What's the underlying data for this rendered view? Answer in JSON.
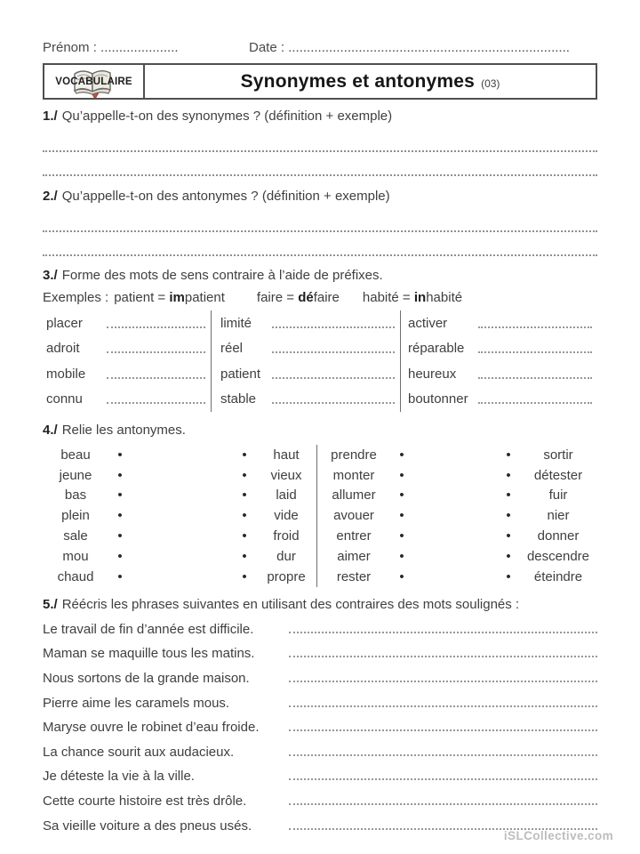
{
  "header_fields": {
    "prenom": "Prénom : ……………………",
    "prenom_text": "Prénom : .....................",
    "date_text": "Date : ............................................................................"
  },
  "header": {
    "category": "VOCABULAIRE",
    "title": "Synonymes et antonymes",
    "title_number": "(03)",
    "icon": "open-book-icon"
  },
  "q1": {
    "number": "1./",
    "text": "Qu’appelle-t-on des synonymes ? (définition + exemple)"
  },
  "q2": {
    "number": "2./",
    "text": "Qu’appelle-t-on des antonymes ? (définition + exemple)"
  },
  "q3": {
    "number": "3./",
    "text": "Forme des mots de sens contraire à l’aide de préfixes.",
    "examples_label": "Exemples :",
    "examples": [
      {
        "base": "patient = ",
        "prefix": "im",
        "rest": "patient"
      },
      {
        "base": "faire = ",
        "prefix": "dé",
        "rest": "faire"
      },
      {
        "base": "habité = ",
        "prefix": "in",
        "rest": "habité"
      }
    ],
    "columns": [
      [
        "placer",
        "adroit",
        "mobile",
        "connu"
      ],
      [
        "limité",
        "réel",
        "patient",
        "stable"
      ],
      [
        "activer",
        "réparable",
        "heureux",
        "boutonner"
      ]
    ]
  },
  "q4": {
    "number": "4./",
    "text": "Relie les antonymes.",
    "bullet": "•",
    "left_group": {
      "left": [
        "beau",
        "jeune",
        "bas",
        "plein",
        "sale",
        "mou",
        "chaud"
      ],
      "right": [
        "haut",
        "vieux",
        "laid",
        "vide",
        "froid",
        "dur",
        "propre"
      ]
    },
    "right_group": {
      "left": [
        "prendre",
        "monter",
        "allumer",
        "avouer",
        "entrer",
        "aimer",
        "rester"
      ],
      "right": [
        "sortir",
        "détester",
        "fuir",
        "nier",
        "donner",
        "descendre",
        "éteindre"
      ]
    }
  },
  "q5": {
    "number": "5./",
    "text": "Réécris les phrases suivantes en utilisant des contraires des mots soulignés :",
    "sentences": [
      [
        [
          "Le travail de ",
          0
        ],
        [
          "fin",
          1
        ],
        [
          " d’année est ",
          0
        ],
        [
          "difficile",
          1
        ],
        [
          ".",
          0
        ]
      ],
      [
        [
          "Maman se ",
          0
        ],
        [
          "maquille",
          1
        ],
        [
          " tous les ",
          0
        ],
        [
          "matins",
          1
        ],
        [
          ".",
          0
        ]
      ],
      [
        [
          "Nous ",
          0
        ],
        [
          "sortons",
          1
        ],
        [
          " de la ",
          0
        ],
        [
          "grande",
          1
        ],
        [
          " maison.",
          0
        ]
      ],
      [
        [
          "Pierre ",
          0
        ],
        [
          "aime",
          1
        ],
        [
          " les caramels ",
          0
        ],
        [
          "mous",
          1
        ],
        [
          ".",
          0
        ]
      ],
      [
        [
          "Maryse ",
          0
        ],
        [
          "ouvre",
          1
        ],
        [
          " le robinet d’eau ",
          0
        ],
        [
          "froide",
          1
        ],
        [
          ".",
          0
        ]
      ],
      [
        [
          "La ",
          0
        ],
        [
          "chance",
          1
        ],
        [
          " sourit aux ",
          0
        ],
        [
          "audacieux",
          1
        ],
        [
          ".",
          0
        ]
      ],
      [
        [
          "Je ",
          0
        ],
        [
          "déteste",
          1
        ],
        [
          " la vie à la ",
          0
        ],
        [
          "ville",
          1
        ],
        [
          ".",
          0
        ]
      ],
      [
        [
          "Cette ",
          0
        ],
        [
          "courte",
          1
        ],
        [
          " histoire est très ",
          0
        ],
        [
          "drôle",
          1
        ],
        [
          ".",
          0
        ]
      ],
      [
        [
          "Sa ",
          0
        ],
        [
          "vieille",
          1
        ],
        [
          " voiture a des pneus ",
          0
        ],
        [
          "usés",
          1
        ],
        [
          ".",
          0
        ]
      ]
    ]
  },
  "footer": {
    "watermark": "iSLCollective.com"
  },
  "colors": {
    "ink": "#3f3f3f",
    "border": "#4f4f4f",
    "dots": "#979797",
    "watermark": "#bdbdbd",
    "book_red": "#c4524a"
  }
}
